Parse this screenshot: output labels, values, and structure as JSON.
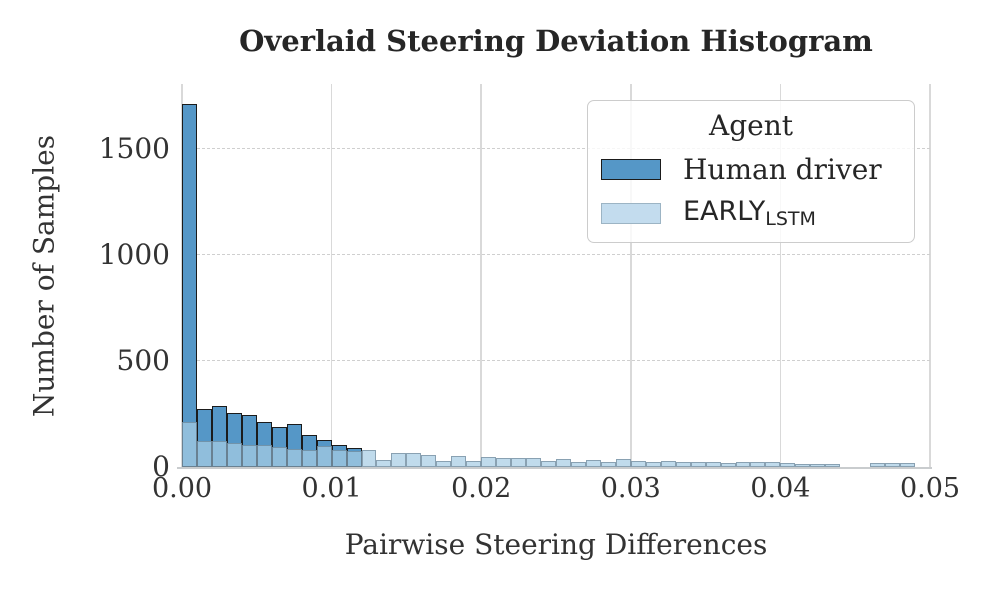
{
  "figure": {
    "title": "Overlaid Steering Deviation Histogram"
  },
  "axes": {
    "xlabel": "Pairwise Steering Differences",
    "ylabel": "Number of Samples",
    "x_tick_labels": [
      "0.00",
      "0.01",
      "0.02",
      "0.03",
      "0.04",
      "0.05"
    ],
    "y_tick_labels": [
      "0",
      "500",
      "1000",
      "1500"
    ]
  },
  "legend": {
    "title": "Agent",
    "items": [
      {
        "label": "Human driver",
        "swatch_color": "#5597c7",
        "swatch_border": "#1b1b1b"
      },
      {
        "label_main": "EARLY",
        "label_sub": "LSTM",
        "swatch_color": "#c3dcee",
        "swatch_border": "#9cb4c4"
      }
    ]
  },
  "chart_data": {
    "type": "bar",
    "subtype": "overlaid-histogram",
    "title": "Overlaid Steering Deviation Histogram",
    "xlabel": "Pairwise Steering Differences",
    "ylabel": "Number of Samples",
    "xlim": [
      0,
      0.05
    ],
    "ylim": [
      0,
      1806
    ],
    "bin_start": 0.0,
    "bin_width": 0.001,
    "x_ticks": [
      0,
      0.01,
      0.02,
      0.03,
      0.04,
      0.05
    ],
    "y_ticks": [
      0,
      500,
      1000,
      1500
    ],
    "y_gridlines": [
      500,
      1000,
      1500
    ],
    "grid": "vertical-solid-horizontal-dashed",
    "legend_position": "upper-right",
    "series": [
      {
        "name": "Human driver",
        "fill": "#5597c7",
        "edge": "#1b1b1b",
        "values": [
          1710,
          275,
          290,
          253,
          245,
          212,
          190,
          203,
          151,
          127,
          104,
          92
        ]
      },
      {
        "name": "EARLY_LSTM",
        "fill": "rgba(168,205,229,0.72)",
        "edge": "rgba(82,104,120,0.5)",
        "values": [
          210,
          123,
          123,
          115,
          104,
          104,
          93,
          83,
          80,
          100,
          79,
          77,
          80,
          33,
          68,
          68,
          57,
          30,
          52,
          30,
          46,
          41,
          41,
          41,
          30,
          36,
          25,
          33,
          25,
          36,
          30,
          25,
          28,
          22,
          25,
          22,
          20,
          25,
          22,
          25,
          20,
          16,
          16,
          15,
          0,
          0,
          17,
          17,
          17
        ]
      }
    ]
  }
}
